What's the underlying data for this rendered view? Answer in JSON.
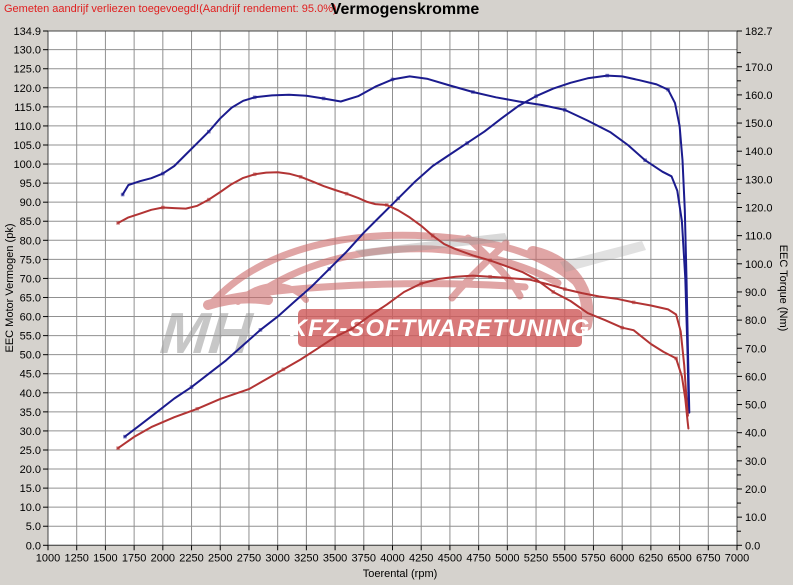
{
  "header": {
    "warning": "Gemeten aandrijf verliezen toegevoegd!(Aandrijf rendement: 95.0%)",
    "title": "Vermogenskromme"
  },
  "watermark": {
    "line1": "MH",
    "line2": "KFZ-SOFTWARETUNING"
  },
  "chart_data": {
    "type": "line",
    "title": "Vermogenskromme",
    "xlabel": "Toerental (rpm)",
    "ylabel_left": "EEC Motor Vermogen (pk)",
    "ylabel_right": "EEC Torque (Nm)",
    "x_range": [
      1000,
      7000
    ],
    "x_tick_step": 250,
    "left_range": [
      0,
      134.9
    ],
    "left_tick_step": 5,
    "right_range": [
      0,
      182.7
    ],
    "right_tick_step": 10,
    "right_minor_tick_step": 5,
    "grid": true,
    "legend": "none",
    "x_tick_labels": [
      "1000",
      "1250",
      "1500",
      "1750",
      "2000",
      "2250",
      "2500",
      "2750",
      "3000",
      "3250",
      "3500",
      "3750",
      "4000",
      "4250",
      "4500",
      "4750",
      "5000",
      "5250",
      "5500",
      "5750",
      "6000",
      "6250",
      "6500",
      "6750",
      "7000"
    ],
    "left_tick_labels": [
      "134.9",
      "130.0",
      "125.0",
      "120.0",
      "115.0",
      "110.0",
      "105.0",
      "100.0",
      "95.0",
      "90.0",
      "85.0",
      "80.0",
      "75.0",
      "70.0",
      "65.0",
      "60.0",
      "55.0",
      "50.0",
      "45.0",
      "40.0",
      "35.0",
      "30.0",
      "25.0",
      "20.0",
      "15.0",
      "10.0",
      "5.0",
      "0.0"
    ],
    "right_tick_labels": [
      "182.7",
      "170.0",
      "160.0",
      "150.0",
      "140.0",
      "130.0",
      "120.0",
      "110.0",
      "100.0",
      "90.0",
      "80.0",
      "70.0",
      "60.0",
      "50.0",
      "40.0",
      "30.0",
      "20.0",
      "10.0",
      "0.0"
    ],
    "colors": {
      "power_blue": "#1b1b8e",
      "torque_red": "#b23434",
      "grid": "#909090",
      "plot_bg": "#ffffff",
      "window_bg": "#d5d2cd",
      "warning_red": "#e02020",
      "watermark_red": "#cc6a6a",
      "watermark_gray": "#9a9a9a",
      "banner_red": "#cf5b5b"
    },
    "series": [
      {
        "name": "curve-power-high",
        "axis": "left",
        "unit": "pk",
        "points": [
          [
            1650,
            92
          ],
          [
            1700,
            94.5
          ],
          [
            1800,
            95.5
          ],
          [
            1900,
            96.3
          ],
          [
            2000,
            97.5
          ],
          [
            2100,
            99.5
          ],
          [
            2200,
            102.5
          ],
          [
            2300,
            105.5
          ],
          [
            2400,
            108.5
          ],
          [
            2500,
            112
          ],
          [
            2600,
            114.8
          ],
          [
            2700,
            116.6
          ],
          [
            2800,
            117.5
          ],
          [
            2950,
            118
          ],
          [
            3100,
            118.2
          ],
          [
            3250,
            117.9
          ],
          [
            3400,
            117.2
          ],
          [
            3550,
            116.4
          ],
          [
            3700,
            117.8
          ],
          [
            3850,
            120.3
          ],
          [
            4000,
            122.2
          ],
          [
            4150,
            123
          ],
          [
            4300,
            122.4
          ],
          [
            4500,
            120.6
          ],
          [
            4700,
            118.9
          ],
          [
            4900,
            117.5
          ],
          [
            5100,
            116.4
          ],
          [
            5300,
            115.5
          ],
          [
            5500,
            114.2
          ],
          [
            5700,
            111.4
          ],
          [
            5900,
            108.3
          ],
          [
            6050,
            105
          ],
          [
            6200,
            101
          ],
          [
            6350,
            98
          ],
          [
            6430,
            96.8
          ],
          [
            6480,
            93
          ],
          [
            6520,
            85
          ],
          [
            6550,
            70
          ],
          [
            6570,
            50
          ],
          [
            6580,
            35
          ]
        ]
      },
      {
        "name": "curve-power-low",
        "axis": "left",
        "unit": "pk",
        "points": [
          [
            1670,
            28.5
          ],
          [
            1800,
            31.5
          ],
          [
            1950,
            35
          ],
          [
            2100,
            38.5
          ],
          [
            2250,
            41.5
          ],
          [
            2400,
            45
          ],
          [
            2550,
            48.5
          ],
          [
            2700,
            52.5
          ],
          [
            2850,
            56.5
          ],
          [
            3000,
            60
          ],
          [
            3150,
            64
          ],
          [
            3300,
            68
          ],
          [
            3450,
            72.5
          ],
          [
            3600,
            77
          ],
          [
            3750,
            82
          ],
          [
            3900,
            86.5
          ],
          [
            4050,
            91
          ],
          [
            4200,
            95.5
          ],
          [
            4350,
            99.5
          ],
          [
            4500,
            102.5
          ],
          [
            4650,
            105.5
          ],
          [
            4800,
            108.5
          ],
          [
            4950,
            112
          ],
          [
            5100,
            115.3
          ],
          [
            5250,
            117.8
          ],
          [
            5400,
            119.8
          ],
          [
            5550,
            121.3
          ],
          [
            5700,
            122.5
          ],
          [
            5870,
            123.2
          ],
          [
            6000,
            123
          ],
          [
            6150,
            122
          ],
          [
            6300,
            120.9
          ],
          [
            6400,
            119.5
          ],
          [
            6460,
            116
          ],
          [
            6500,
            110
          ],
          [
            6525,
            101
          ],
          [
            6545,
            88
          ],
          [
            6560,
            70
          ],
          [
            6575,
            48
          ],
          [
            6585,
            34.8
          ]
        ]
      },
      {
        "name": "curve-torque-high",
        "axis": "right",
        "unit": "Nm",
        "points": [
          [
            1610,
            114.5
          ],
          [
            1700,
            116.5
          ],
          [
            1800,
            117.8
          ],
          [
            1900,
            119.2
          ],
          [
            2000,
            120
          ],
          [
            2100,
            119.8
          ],
          [
            2200,
            119.6
          ],
          [
            2300,
            120.6
          ],
          [
            2400,
            122.8
          ],
          [
            2500,
            125.5
          ],
          [
            2600,
            128.3
          ],
          [
            2700,
            130.5
          ],
          [
            2800,
            131.8
          ],
          [
            2900,
            132.4
          ],
          [
            3000,
            132.5
          ],
          [
            3100,
            132
          ],
          [
            3200,
            130.9
          ],
          [
            3300,
            129.3
          ],
          [
            3400,
            127.6
          ],
          [
            3500,
            126.2
          ],
          [
            3600,
            124.9
          ],
          [
            3700,
            123.4
          ],
          [
            3780,
            122
          ],
          [
            3850,
            121.2
          ],
          [
            3950,
            120.9
          ],
          [
            4050,
            119
          ],
          [
            4150,
            116.5
          ],
          [
            4250,
            113.5
          ],
          [
            4350,
            110
          ],
          [
            4450,
            107
          ],
          [
            4550,
            105.2
          ],
          [
            4700,
            103
          ],
          [
            4850,
            101.2
          ],
          [
            5000,
            99
          ],
          [
            5135,
            97
          ],
          [
            5250,
            94.5
          ],
          [
            5400,
            90
          ],
          [
            5550,
            86.8
          ],
          [
            5700,
            82.5
          ],
          [
            5850,
            80
          ],
          [
            6000,
            77.3
          ],
          [
            6100,
            76.4
          ],
          [
            6250,
            71.5
          ],
          [
            6360,
            68.7
          ],
          [
            6470,
            66.4
          ],
          [
            6520,
            60
          ],
          [
            6550,
            52
          ],
          [
            6570,
            44
          ],
          [
            6577,
            41.5
          ]
        ]
      },
      {
        "name": "curve-torque-low",
        "axis": "right",
        "unit": "Nm",
        "points": [
          [
            1610,
            34.5
          ],
          [
            1750,
            38.5
          ],
          [
            1900,
            42
          ],
          [
            2100,
            45.5
          ],
          [
            2300,
            48.5
          ],
          [
            2500,
            52
          ],
          [
            2750,
            55.5
          ],
          [
            2900,
            59
          ],
          [
            3050,
            62.5
          ],
          [
            3200,
            66
          ],
          [
            3350,
            70
          ],
          [
            3500,
            74
          ],
          [
            3650,
            77
          ],
          [
            3800,
            81.5
          ],
          [
            3950,
            85.5
          ],
          [
            4100,
            90
          ],
          [
            4250,
            93
          ],
          [
            4400,
            94.6
          ],
          [
            4550,
            95.4
          ],
          [
            4700,
            95.8
          ],
          [
            4850,
            95.4
          ],
          [
            5000,
            95
          ],
          [
            5200,
            94.3
          ],
          [
            5350,
            92.8
          ],
          [
            5500,
            91
          ],
          [
            5650,
            89.6
          ],
          [
            5800,
            88.4
          ],
          [
            5950,
            87.6
          ],
          [
            6100,
            86.3
          ],
          [
            6250,
            85.2
          ],
          [
            6400,
            83.8
          ],
          [
            6470,
            82
          ],
          [
            6510,
            76
          ],
          [
            6540,
            64
          ],
          [
            6560,
            52
          ],
          [
            6572,
            46
          ]
        ]
      }
    ]
  }
}
